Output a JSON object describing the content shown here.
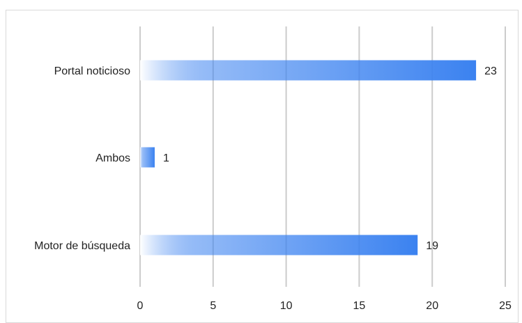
{
  "chart_data": {
    "type": "bar",
    "orientation": "horizontal",
    "categories": [
      "Portal noticioso",
      "Ambos",
      "Motor de búsqueda"
    ],
    "values": [
      23,
      1,
      19
    ],
    "data_labels": [
      "23",
      "1",
      "19"
    ],
    "xlim": [
      0,
      25
    ],
    "x_ticks": [
      "0",
      "5",
      "10",
      "15",
      "20",
      "25"
    ],
    "grid": true,
    "legend": "none",
    "colors": {
      "bar_start": "#ffffff",
      "bar_end": "#3b82f0",
      "grid": "#cccccc",
      "text": "#222222"
    }
  }
}
